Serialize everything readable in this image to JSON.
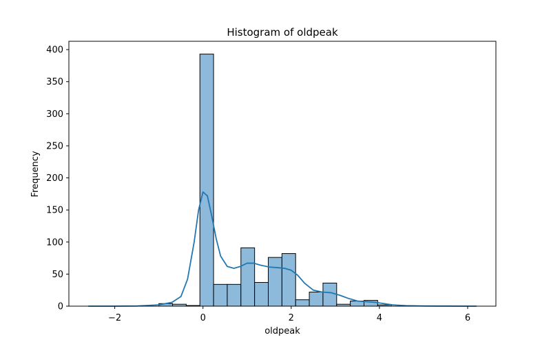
{
  "chart_data": {
    "type": "bar",
    "title": "Histogram of oldpeak",
    "xlabel": "oldpeak",
    "ylabel": "Frequency",
    "xlim": [
      -3.04,
      6.64
    ],
    "ylim": [
      0,
      413
    ],
    "x_ticks": [
      -2,
      0,
      2,
      4,
      6
    ],
    "x_tick_labels": [
      "−2",
      "0",
      "2",
      "4",
      "6"
    ],
    "y_ticks": [
      0,
      50,
      100,
      150,
      200,
      250,
      300,
      350,
      400
    ],
    "y_tick_labels": [
      "0",
      "50",
      "100",
      "150",
      "200",
      "250",
      "300",
      "350",
      "400"
    ],
    "bins": [
      {
        "x0": -1.0,
        "x1": -0.69,
        "count": 4
      },
      {
        "x0": -0.69,
        "x1": -0.38,
        "count": 3
      },
      {
        "x0": -0.38,
        "x1": -0.07,
        "count": 1
      },
      {
        "x0": -0.07,
        "x1": 0.24,
        "count": 393
      },
      {
        "x0": 0.24,
        "x1": 0.55,
        "count": 34
      },
      {
        "x0": 0.55,
        "x1": 0.86,
        "count": 34
      },
      {
        "x0": 0.86,
        "x1": 1.17,
        "count": 91
      },
      {
        "x0": 1.17,
        "x1": 1.48,
        "count": 37
      },
      {
        "x0": 1.48,
        "x1": 1.79,
        "count": 76
      },
      {
        "x0": 1.79,
        "x1": 2.1,
        "count": 82
      },
      {
        "x0": 2.1,
        "x1": 2.41,
        "count": 10
      },
      {
        "x0": 2.41,
        "x1": 2.72,
        "count": 22
      },
      {
        "x0": 2.72,
        "x1": 3.03,
        "count": 36
      },
      {
        "x0": 3.03,
        "x1": 3.34,
        "count": 3
      },
      {
        "x0": 3.34,
        "x1": 3.65,
        "count": 8
      },
      {
        "x0": 3.65,
        "x1": 3.96,
        "count": 9
      },
      {
        "x0": 3.96,
        "x1": 4.27,
        "count": 2
      }
    ],
    "kde": {
      "x": [
        -2.6,
        -2.0,
        -1.5,
        -1.0,
        -0.7,
        -0.5,
        -0.35,
        -0.2,
        -0.1,
        0.0,
        0.1,
        0.2,
        0.3,
        0.4,
        0.55,
        0.7,
        0.85,
        1.0,
        1.15,
        1.3,
        1.5,
        1.7,
        1.85,
        2.0,
        2.15,
        2.3,
        2.5,
        2.7,
        2.9,
        3.1,
        3.3,
        3.5,
        3.7,
        3.9,
        4.1,
        4.3,
        4.6,
        5.0,
        5.5,
        6.0,
        6.2
      ],
      "y": [
        0,
        0,
        0.3,
        2,
        6,
        15,
        42,
        100,
        150,
        178,
        172,
        140,
        105,
        78,
        62,
        59,
        62,
        67,
        67,
        64,
        61,
        60,
        59,
        56,
        48,
        36,
        25,
        22,
        21,
        17,
        12,
        8,
        7,
        6,
        4,
        2,
        0.8,
        0.3,
        0.1,
        0,
        0
      ]
    },
    "colors": {
      "bar_fill": "#8db9da",
      "bar_edge": "#000000",
      "kde_line": "#1f77b4"
    },
    "grid": false,
    "legend": "none"
  }
}
